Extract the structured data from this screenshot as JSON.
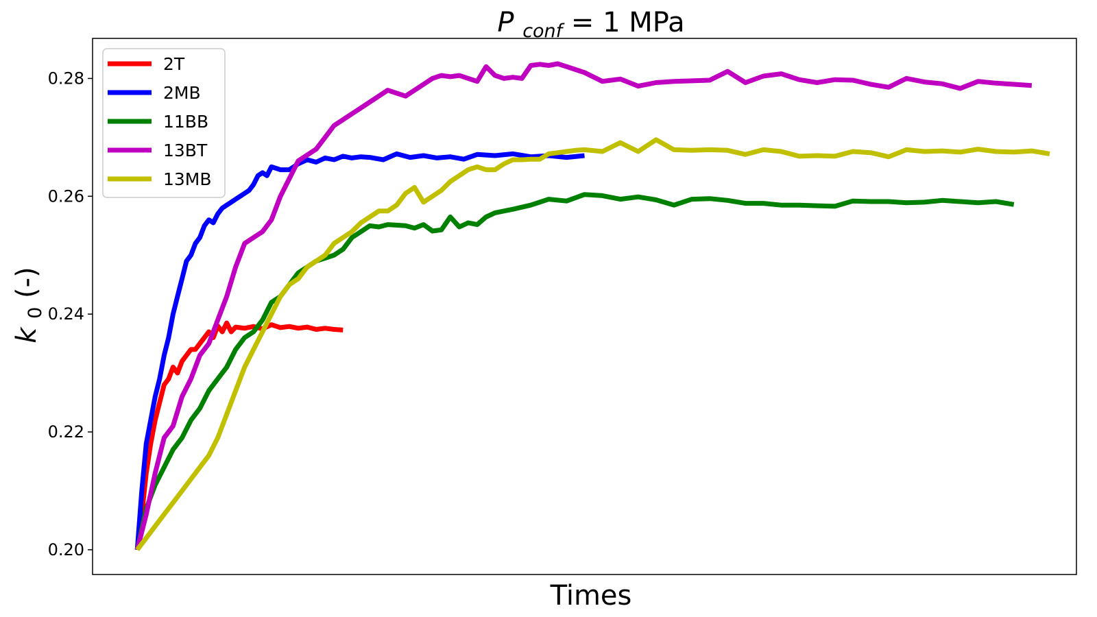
{
  "chart_data": {
    "type": "line",
    "title": {
      "main": "P",
      "subscript": "conf",
      "rest": " = 1 MPa"
    },
    "xlabel": "Times",
    "ylabel": {
      "main": "k",
      "subscript": "0",
      "rest": " (-)"
    },
    "ylim": [
      0.1958,
      0.2868
    ],
    "yticks": [
      0.2,
      0.22,
      0.24,
      0.26,
      0.28
    ],
    "ytick_labels": [
      "0.20",
      "0.22",
      "0.24",
      "0.26",
      "0.28"
    ],
    "xlim": [
      -10,
      210
    ],
    "xticks_shown": false,
    "grid": false,
    "legend_position": "top-left",
    "series": [
      {
        "name": "2T",
        "color": "#ff0000",
        "x": [
          0,
          1,
          2,
          3,
          4,
          5,
          6,
          7,
          8,
          9,
          10,
          11,
          12,
          13,
          14,
          15,
          16,
          17,
          18,
          19,
          20,
          21,
          22,
          24,
          26,
          28,
          30,
          32,
          34,
          36,
          38,
          40,
          42,
          44,
          46
        ],
        "y": [
          0.2,
          0.206,
          0.213,
          0.218,
          0.222,
          0.225,
          0.228,
          0.229,
          0.231,
          0.23,
          0.232,
          0.233,
          0.234,
          0.234,
          0.235,
          0.236,
          0.237,
          0.236,
          0.238,
          0.237,
          0.2385,
          0.237,
          0.2378,
          0.2376,
          0.2379,
          0.2375,
          0.2382,
          0.2377,
          0.2379,
          0.2376,
          0.2378,
          0.2374,
          0.2376,
          0.2374,
          0.2373
        ]
      },
      {
        "name": "2MB",
        "color": "#0000ff",
        "x": [
          0,
          1,
          2,
          3,
          4,
          5,
          6,
          7,
          8,
          9,
          10,
          11,
          12,
          13,
          14,
          15,
          16,
          17,
          18,
          19,
          20,
          21,
          22,
          23,
          24,
          25,
          26,
          27,
          28,
          29,
          30,
          32,
          34,
          36,
          38,
          40,
          42,
          44,
          46,
          48,
          50,
          52,
          55,
          58,
          61,
          64,
          67,
          70,
          73,
          76,
          80,
          84,
          88,
          92,
          96,
          100
        ],
        "y": [
          0.2,
          0.21,
          0.218,
          0.222,
          0.226,
          0.229,
          0.233,
          0.236,
          0.24,
          0.243,
          0.246,
          0.249,
          0.25,
          0.252,
          0.253,
          0.255,
          0.256,
          0.2555,
          0.257,
          0.258,
          0.2585,
          0.259,
          0.2595,
          0.26,
          0.2605,
          0.261,
          0.262,
          0.2635,
          0.264,
          0.2635,
          0.265,
          0.2645,
          0.2645,
          0.2655,
          0.2662,
          0.2658,
          0.2665,
          0.2662,
          0.2668,
          0.2665,
          0.2667,
          0.2666,
          0.2662,
          0.2672,
          0.2666,
          0.2669,
          0.2665,
          0.2667,
          0.2663,
          0.2671,
          0.2669,
          0.2672,
          0.2667,
          0.2669,
          0.2666,
          0.2669
        ]
      },
      {
        "name": "11BB",
        "color": "#008000",
        "x": [
          0,
          2,
          4,
          6,
          8,
          10,
          12,
          14,
          16,
          18,
          20,
          22,
          24,
          26,
          28,
          30,
          32,
          34,
          36,
          38,
          40,
          42,
          44,
          46,
          48,
          50,
          52,
          54,
          56,
          58,
          60,
          62,
          64,
          66,
          68,
          70,
          72,
          74,
          76,
          78,
          80,
          84,
          88,
          92,
          96,
          100,
          104,
          108,
          112,
          116,
          120,
          124,
          128,
          132,
          136,
          140,
          144,
          148,
          152,
          156,
          160,
          164,
          168,
          172,
          176,
          180,
          184,
          188,
          192,
          196
        ],
        "y": [
          0.2,
          0.207,
          0.211,
          0.214,
          0.217,
          0.219,
          0.222,
          0.224,
          0.227,
          0.229,
          0.231,
          0.234,
          0.236,
          0.237,
          0.239,
          0.242,
          0.243,
          0.245,
          0.247,
          0.248,
          0.249,
          0.2495,
          0.25,
          0.251,
          0.253,
          0.254,
          0.255,
          0.2548,
          0.2552,
          0.2551,
          0.255,
          0.2546,
          0.2552,
          0.2541,
          0.2543,
          0.2565,
          0.2548,
          0.2555,
          0.2552,
          0.2565,
          0.2572,
          0.2578,
          0.2585,
          0.2595,
          0.2592,
          0.2603,
          0.2601,
          0.2595,
          0.2599,
          0.2594,
          0.2585,
          0.2595,
          0.2596,
          0.2593,
          0.2588,
          0.2588,
          0.2585,
          0.2585,
          0.2584,
          0.2583,
          0.2592,
          0.2591,
          0.2591,
          0.2589,
          0.259,
          0.2593,
          0.2591,
          0.2589,
          0.2591,
          0.2586
        ]
      },
      {
        "name": "13BT",
        "color": "#c000c0",
        "x": [
          0,
          2,
          4,
          6,
          8,
          10,
          12,
          14,
          16,
          18,
          20,
          22,
          24,
          26,
          28,
          30,
          32,
          34,
          36,
          38,
          40,
          42,
          44,
          46,
          48,
          50,
          52,
          54,
          56,
          58,
          60,
          62,
          64,
          66,
          68,
          70,
          72,
          74,
          76,
          78,
          80,
          82,
          84,
          86,
          88,
          90,
          92,
          94,
          96,
          98,
          100,
          104,
          108,
          112,
          116,
          120,
          124,
          128,
          132,
          136,
          140,
          144,
          148,
          152,
          156,
          160,
          164,
          168,
          172,
          176,
          180,
          184,
          188,
          192,
          196,
          200
        ],
        "y": [
          0.2,
          0.206,
          0.213,
          0.219,
          0.221,
          0.226,
          0.229,
          0.233,
          0.235,
          0.239,
          0.243,
          0.248,
          0.252,
          0.253,
          0.254,
          0.256,
          0.26,
          0.263,
          0.266,
          0.267,
          0.268,
          0.27,
          0.272,
          0.273,
          0.274,
          0.275,
          0.276,
          0.277,
          0.278,
          0.2775,
          0.277,
          0.278,
          0.279,
          0.28,
          0.2805,
          0.2803,
          0.2805,
          0.28,
          0.2795,
          0.282,
          0.2805,
          0.28,
          0.2802,
          0.28,
          0.2822,
          0.2824,
          0.2822,
          0.2825,
          0.282,
          0.2815,
          0.281,
          0.2795,
          0.2799,
          0.2787,
          0.2793,
          0.2795,
          0.2796,
          0.2797,
          0.2812,
          0.2793,
          0.2804,
          0.2808,
          0.2798,
          0.2793,
          0.2798,
          0.2797,
          0.279,
          0.2785,
          0.28,
          0.2794,
          0.2791,
          0.2783,
          0.2795,
          0.2792,
          0.279,
          0.2788
        ]
      },
      {
        "name": "13MB",
        "color": "#c0c000",
        "x": [
          0,
          2,
          4,
          6,
          8,
          10,
          12,
          14,
          16,
          18,
          20,
          22,
          24,
          26,
          28,
          30,
          32,
          34,
          36,
          38,
          40,
          42,
          44,
          46,
          48,
          50,
          52,
          54,
          56,
          58,
          60,
          62,
          64,
          66,
          68,
          70,
          72,
          74,
          76,
          78,
          80,
          82,
          84,
          86,
          88,
          90,
          92,
          94,
          96,
          98,
          100,
          104,
          108,
          112,
          116,
          120,
          124,
          128,
          132,
          136,
          140,
          144,
          148,
          152,
          156,
          160,
          164,
          168,
          172,
          176,
          180,
          184,
          188,
          192,
          196,
          200,
          204
        ],
        "y": [
          0.2,
          0.202,
          0.204,
          0.206,
          0.208,
          0.21,
          0.212,
          0.214,
          0.216,
          0.219,
          0.223,
          0.227,
          0.231,
          0.234,
          0.237,
          0.24,
          0.243,
          0.245,
          0.246,
          0.248,
          0.249,
          0.25,
          0.252,
          0.253,
          0.254,
          0.2555,
          0.2565,
          0.2575,
          0.2575,
          0.2585,
          0.2605,
          0.2615,
          0.259,
          0.26,
          0.261,
          0.2625,
          0.2635,
          0.2645,
          0.265,
          0.2645,
          0.2645,
          0.2655,
          0.2662,
          0.2662,
          0.2663,
          0.2663,
          0.2672,
          0.2674,
          0.2676,
          0.2678,
          0.2679,
          0.2676,
          0.2691,
          0.2676,
          0.2696,
          0.2679,
          0.2678,
          0.2679,
          0.2678,
          0.2671,
          0.2679,
          0.2676,
          0.2668,
          0.2669,
          0.2668,
          0.2676,
          0.2674,
          0.2667,
          0.2679,
          0.2676,
          0.2677,
          0.2675,
          0.268,
          0.2676,
          0.2675,
          0.2677,
          0.2672
        ]
      }
    ]
  }
}
